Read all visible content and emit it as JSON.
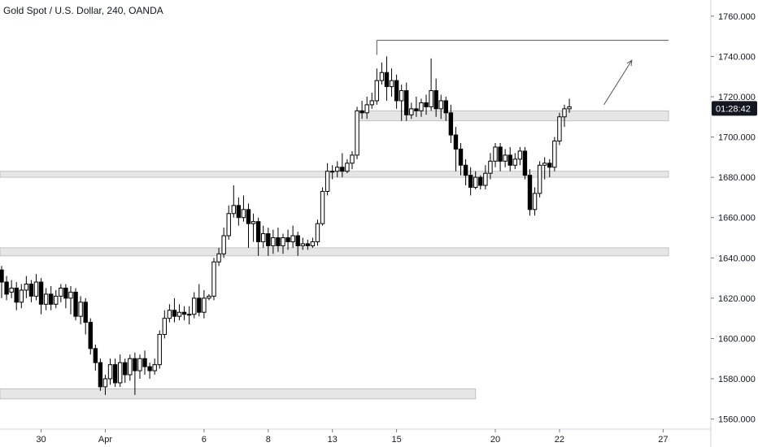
{
  "header": {
    "title": "Gold Spot / U.S. Dollar, 240, OANDA"
  },
  "colors": {
    "candle": "#000000",
    "zone_fill": "#e6e6e6",
    "zone_stroke": "#b8b8b8",
    "axis_line": "#d1d4dc",
    "price_tag": "#131722",
    "drawing": "#555555"
  },
  "chart_data": {
    "type": "candlestick",
    "title": "Gold Spot / U.S. Dollar, 240, OANDA",
    "ylim": [
      1555,
      1768
    ],
    "grid": false,
    "y_tick_labels": [
      "1760.000",
      "1740.000",
      "1720.000",
      "1700.000",
      "1680.000",
      "1660.000",
      "1640.000",
      "1620.000",
      "1600.000",
      "1580.000",
      "1560.000"
    ],
    "y_ticks": [
      1760,
      1740,
      1720,
      1700,
      1680,
      1660,
      1640,
      1620,
      1600,
      1580,
      1560
    ],
    "x_tick_labels": [
      "30",
      "Apr",
      "6",
      "8",
      "13",
      "15",
      "20",
      "22",
      "27"
    ],
    "x_tick_index": [
      8,
      21,
      41,
      54,
      67,
      80,
      100,
      113,
      134
    ],
    "current_price_label": "01:28:42",
    "current_price": 1715,
    "candles": [
      [
        1634,
        1628,
        1636,
        1620
      ],
      [
        1628,
        1622,
        1631,
        1619
      ],
      [
        1623,
        1625,
        1629,
        1620
      ],
      [
        1625,
        1618,
        1628,
        1614
      ],
      [
        1618,
        1624,
        1627,
        1615
      ],
      [
        1624,
        1627,
        1631,
        1620
      ],
      [
        1627,
        1621,
        1629,
        1618
      ],
      [
        1621,
        1628,
        1632,
        1619
      ],
      [
        1628,
        1617,
        1630,
        1612
      ],
      [
        1617,
        1622,
        1625,
        1614
      ],
      [
        1622,
        1617,
        1626,
        1614
      ],
      [
        1617,
        1621,
        1624,
        1615
      ],
      [
        1621,
        1625,
        1627,
        1618
      ],
      [
        1625,
        1620,
        1627,
        1615
      ],
      [
        1620,
        1623,
        1626,
        1612
      ],
      [
        1623,
        1611,
        1625,
        1609
      ],
      [
        1611,
        1618,
        1621,
        1607
      ],
      [
        1618,
        1608,
        1620,
        1602
      ],
      [
        1608,
        1595,
        1610,
        1592
      ],
      [
        1595,
        1588,
        1597,
        1584
      ],
      [
        1588,
        1576,
        1590,
        1574
      ],
      [
        1576,
        1580,
        1582,
        1572
      ],
      [
        1580,
        1587,
        1590,
        1577
      ],
      [
        1587,
        1578,
        1590,
        1576
      ],
      [
        1578,
        1588,
        1592,
        1576
      ],
      [
        1588,
        1582,
        1590,
        1578
      ],
      [
        1582,
        1590,
        1592,
        1579
      ],
      [
        1590,
        1584,
        1593,
        1572
      ],
      [
        1584,
        1590,
        1592,
        1580
      ],
      [
        1590,
        1586,
        1594,
        1582
      ],
      [
        1586,
        1584,
        1588,
        1580
      ],
      [
        1584,
        1587,
        1590,
        1582
      ],
      [
        1587,
        1602,
        1604,
        1585
      ],
      [
        1602,
        1610,
        1614,
        1600
      ],
      [
        1610,
        1614,
        1617,
        1608
      ],
      [
        1614,
        1611,
        1620,
        1608
      ],
      [
        1611,
        1613,
        1617,
        1609
      ],
      [
        1613,
        1612,
        1616,
        1609
      ],
      [
        1612,
        1612,
        1616,
        1607
      ],
      [
        1612,
        1620,
        1623,
        1610
      ],
      [
        1620,
        1613,
        1627,
        1611
      ],
      [
        1613,
        1620,
        1624,
        1610
      ],
      [
        1620,
        1621,
        1622,
        1619
      ],
      [
        1621,
        1638,
        1640,
        1619
      ],
      [
        1638,
        1642,
        1645,
        1636
      ],
      [
        1642,
        1651,
        1655,
        1640
      ],
      [
        1651,
        1662,
        1666,
        1649
      ],
      [
        1662,
        1666,
        1676,
        1660
      ],
      [
        1666,
        1660,
        1670,
        1656
      ],
      [
        1660,
        1664,
        1671,
        1658
      ],
      [
        1664,
        1657,
        1667,
        1645
      ],
      [
        1657,
        1658,
        1662,
        1648
      ],
      [
        1658,
        1648,
        1660,
        1641
      ],
      [
        1648,
        1652,
        1656,
        1645
      ],
      [
        1652,
        1646,
        1655,
        1641
      ],
      [
        1646,
        1650,
        1654,
        1642
      ],
      [
        1650,
        1646,
        1655,
        1643
      ],
      [
        1646,
        1650,
        1652,
        1642
      ],
      [
        1650,
        1648,
        1654,
        1644
      ],
      [
        1648,
        1651,
        1656,
        1645
      ],
      [
        1651,
        1646,
        1653,
        1641
      ],
      [
        1646,
        1647,
        1650,
        1644
      ],
      [
        1647,
        1646,
        1649,
        1644
      ],
      [
        1646,
        1648,
        1650,
        1645
      ],
      [
        1648,
        1657,
        1659,
        1646
      ],
      [
        1657,
        1673,
        1675,
        1656
      ],
      [
        1673,
        1683,
        1687,
        1671
      ],
      [
        1683,
        1683,
        1686,
        1679
      ],
      [
        1683,
        1685,
        1688,
        1680
      ],
      [
        1685,
        1683,
        1692,
        1680
      ],
      [
        1683,
        1687,
        1689,
        1682
      ],
      [
        1687,
        1691,
        1693,
        1684
      ],
      [
        1691,
        1713,
        1715,
        1689
      ],
      [
        1713,
        1712,
        1718,
        1709
      ],
      [
        1712,
        1716,
        1720,
        1709
      ],
      [
        1716,
        1718,
        1722,
        1714
      ],
      [
        1718,
        1728,
        1734,
        1716
      ],
      [
        1728,
        1732,
        1737,
        1726
      ],
      [
        1732,
        1725,
        1740,
        1718
      ],
      [
        1725,
        1728,
        1734,
        1720
      ],
      [
        1728,
        1718,
        1731,
        1714
      ],
      [
        1718,
        1723,
        1726,
        1708
      ],
      [
        1723,
        1711,
        1727,
        1708
      ],
      [
        1711,
        1714,
        1717,
        1709
      ],
      [
        1714,
        1713,
        1720,
        1710
      ],
      [
        1713,
        1717,
        1719,
        1710
      ],
      [
        1717,
        1715,
        1721,
        1711
      ],
      [
        1715,
        1723,
        1739,
        1713
      ],
      [
        1723,
        1714,
        1729,
        1710
      ],
      [
        1714,
        1718,
        1721,
        1709
      ],
      [
        1718,
        1712,
        1720,
        1708
      ],
      [
        1712,
        1701,
        1716,
        1697
      ],
      [
        1701,
        1694,
        1705,
        1683
      ],
      [
        1694,
        1686,
        1697,
        1681
      ],
      [
        1686,
        1681,
        1689,
        1676
      ],
      [
        1681,
        1675,
        1685,
        1671
      ],
      [
        1675,
        1680,
        1683,
        1674
      ],
      [
        1680,
        1676,
        1681,
        1674
      ],
      [
        1676,
        1682,
        1686,
        1674
      ],
      [
        1682,
        1688,
        1692,
        1679
      ],
      [
        1688,
        1695,
        1697,
        1685
      ],
      [
        1695,
        1688,
        1697,
        1683
      ],
      [
        1688,
        1691,
        1694,
        1685
      ],
      [
        1691,
        1686,
        1695,
        1683
      ],
      [
        1686,
        1689,
        1692,
        1684
      ],
      [
        1689,
        1693,
        1695,
        1686
      ],
      [
        1693,
        1681,
        1695,
        1679
      ],
      [
        1681,
        1664,
        1684,
        1661
      ],
      [
        1664,
        1672,
        1675,
        1661
      ],
      [
        1672,
        1686,
        1688,
        1670
      ],
      [
        1686,
        1687,
        1690,
        1679
      ],
      [
        1687,
        1685,
        1689,
        1680
      ],
      [
        1685,
        1698,
        1700,
        1683
      ],
      [
        1698,
        1710,
        1712,
        1696
      ],
      [
        1710,
        1714,
        1716,
        1705
      ],
      [
        1714,
        1715,
        1719,
        1712
      ]
    ],
    "zones": [
      {
        "y_top": 1713,
        "y_bottom": 1708,
        "x_from_index": 72,
        "x_to_index": 149
      },
      {
        "y_top": 1683,
        "y_bottom": 1680,
        "x_from_index": -2,
        "x_to_index": 149
      },
      {
        "y_top": 1645,
        "y_bottom": 1641,
        "x_from_index": -2,
        "x_to_index": 148
      },
      {
        "y_top": 1575,
        "y_bottom": 1570,
        "x_from_index": -2,
        "x_to_index": 96
      }
    ],
    "high_line": {
      "y": 1748,
      "x_from_index": 76,
      "x_to_index": 149
    },
    "arrow": {
      "from": [
        1716,
        122
      ],
      "to": [
        1734,
        126
      ]
    }
  }
}
